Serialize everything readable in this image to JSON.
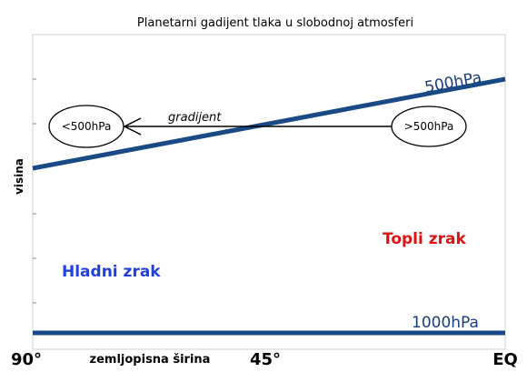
{
  "title": "Planetarni gadijent tlaka u slobodnoj atmosferi",
  "y_axis_label": "visina",
  "x_axis_label": "zemljopisna širina",
  "x_ticks": [
    "90°",
    "45°",
    "EQ"
  ],
  "isobars": [
    {
      "label": "500hPa"
    },
    {
      "label": "1000hPa"
    }
  ],
  "gradient": {
    "label": "gradijent",
    "low_label": "<500hPa",
    "high_label": ">500hPa"
  },
  "air_masses": {
    "cold": "Hladni zrak",
    "warm": "Topli zrak"
  },
  "colors": {
    "isobar": "#1a4a86",
    "cold": "#1f3fe0",
    "warm": "#e01010",
    "axis": "#cccccc"
  }
}
